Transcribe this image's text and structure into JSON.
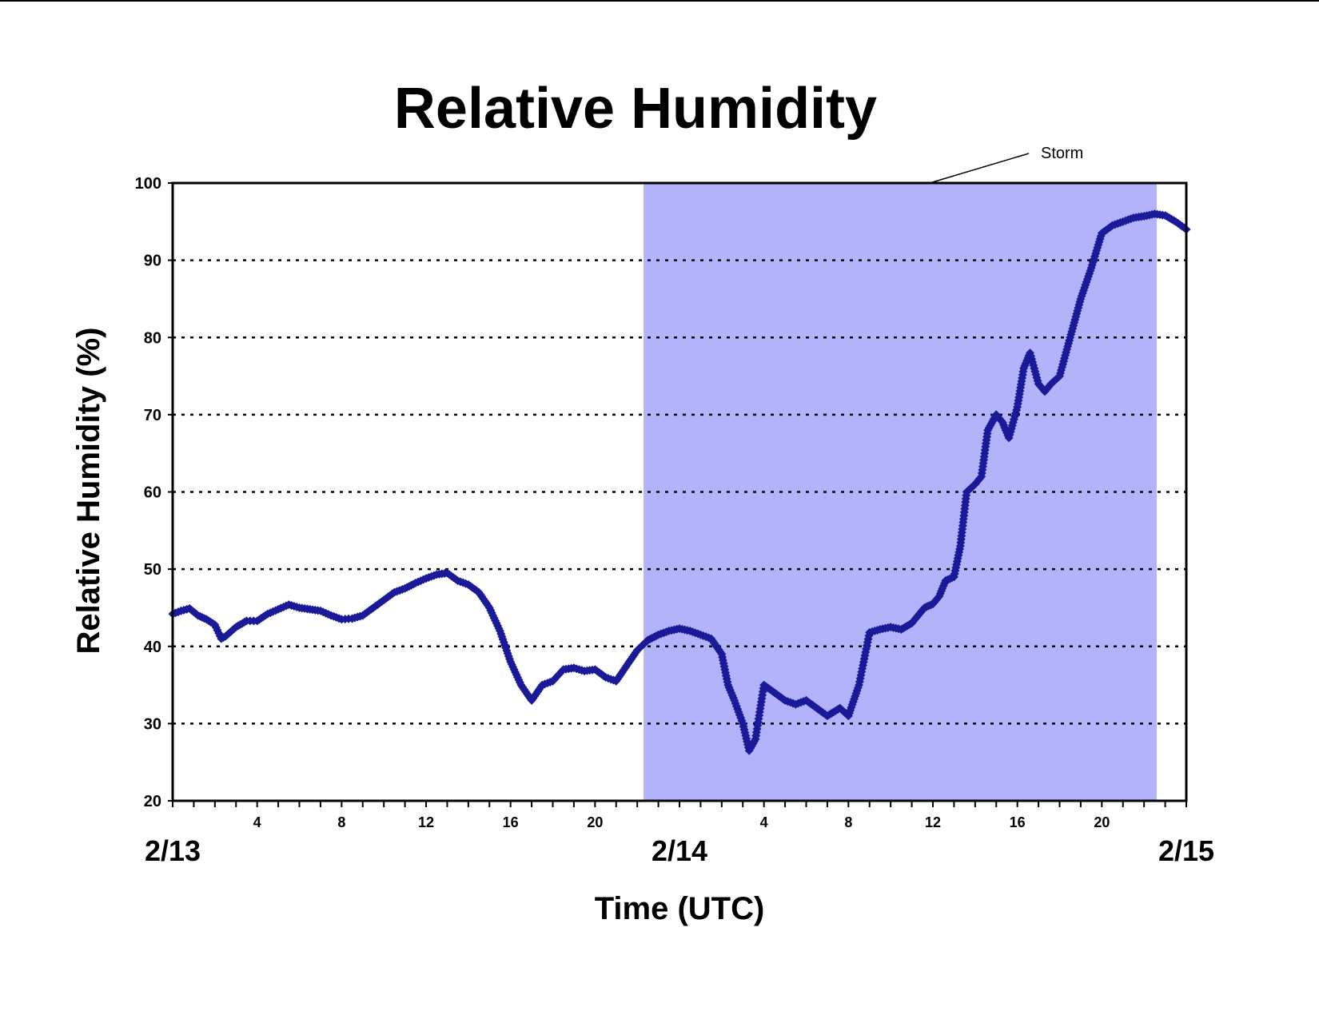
{
  "chart_data": {
    "type": "scatter",
    "title": "Relative Humidity",
    "xlabel": "Time (UTC)",
    "ylabel": "Relative Humidity (%)",
    "x_unit": "hours after 2/13 00:00 UTC",
    "xlim": [
      0,
      48
    ],
    "ylim": [
      20,
      100
    ],
    "y_ticks": [
      20,
      30,
      40,
      50,
      60,
      70,
      80,
      90,
      100
    ],
    "x_hour_ticks": [
      4,
      8,
      12,
      16,
      20,
      28,
      32,
      36,
      40,
      44
    ],
    "x_hour_tick_labels": [
      "4",
      "8",
      "12",
      "16",
      "20",
      "4",
      "8",
      "12",
      "16",
      "20"
    ],
    "date_labels": [
      {
        "label": "2/13",
        "hour": 0
      },
      {
        "label": "2/14",
        "hour": 24
      },
      {
        "label": "2/15",
        "hour": 48
      }
    ],
    "grid": "horizontal dotted",
    "shaded_region": {
      "label": "Storm",
      "x_start": 22.3,
      "x_end": 46.6,
      "color": "#b3b3fb"
    },
    "marker_color": "#1a1a99",
    "series": [
      {
        "x": [
          0,
          0.4,
          0.8,
          1.2,
          1.6,
          2.0,
          2.3,
          2.5,
          3.0,
          3.5,
          4.0,
          4.5,
          5.0,
          5.5,
          6.0,
          6.5,
          7.0,
          7.5,
          8.0,
          8.5,
          9.0,
          9.5,
          10.0,
          10.5,
          11.0,
          11.5,
          12.0,
          12.5,
          13.0,
          13.5,
          14.0,
          14.5,
          15.0,
          15.5,
          16.0,
          16.5,
          17.0,
          17.5,
          18.0,
          18.5,
          19.0,
          19.5,
          20.0,
          20.5,
          21.0,
          21.5,
          22.0,
          22.5,
          23.0,
          23.5,
          24.0,
          24.5,
          25.0,
          25.5,
          26.0,
          26.3,
          26.6,
          27.0,
          27.3,
          27.6,
          28.0,
          28.5,
          29.0,
          29.5,
          30.0,
          30.5,
          31.0,
          31.3,
          31.6,
          32.0,
          32.5,
          33.0,
          33.5,
          34.0,
          34.5,
          35.0,
          35.3,
          35.6,
          36.0,
          36.3,
          36.6,
          37.0,
          37.3,
          37.6,
          38.0,
          38.3,
          38.6,
          39.0,
          39.3,
          39.6,
          40.0,
          40.3,
          40.6,
          41.0,
          41.3,
          41.6,
          42.0,
          42.5,
          43.0,
          43.5,
          44.0,
          44.5,
          45.0,
          45.5,
          46.0,
          46.5,
          47.0,
          47.5,
          48.0
        ],
        "y": [
          44.2,
          44.6,
          44.9,
          44.0,
          43.5,
          42.8,
          41.0,
          41.3,
          42.5,
          43.3,
          43.3,
          44.2,
          44.8,
          45.4,
          45.0,
          44.8,
          44.6,
          44.0,
          43.5,
          43.6,
          44.0,
          45.0,
          46.0,
          47.0,
          47.5,
          48.2,
          48.8,
          49.3,
          49.5,
          48.5,
          48.0,
          47.0,
          45.0,
          42.0,
          38.0,
          35.0,
          33.0,
          35.0,
          35.5,
          37.0,
          37.2,
          36.8,
          37.0,
          36.0,
          35.5,
          37.5,
          39.5,
          40.8,
          41.5,
          42.0,
          42.3,
          42.0,
          41.5,
          41.0,
          39.0,
          35.0,
          33.0,
          30.0,
          26.5,
          28.0,
          35.0,
          34.0,
          33.0,
          32.5,
          33.0,
          32.0,
          31.0,
          31.5,
          32.0,
          31.0,
          35.0,
          41.8,
          42.2,
          42.5,
          42.2,
          43.0,
          44.0,
          45.0,
          45.5,
          46.5,
          48.5,
          49.0,
          53.0,
          60.0,
          61.0,
          62.0,
          68.0,
          70.0,
          69.0,
          67.0,
          71.0,
          76.0,
          78.0,
          74.0,
          73.0,
          74.0,
          75.0,
          80.0,
          85.0,
          89.0,
          93.5,
          94.5,
          95.0,
          95.5,
          95.7,
          96.0,
          95.8,
          95.0,
          94.0
        ]
      }
    ]
  }
}
